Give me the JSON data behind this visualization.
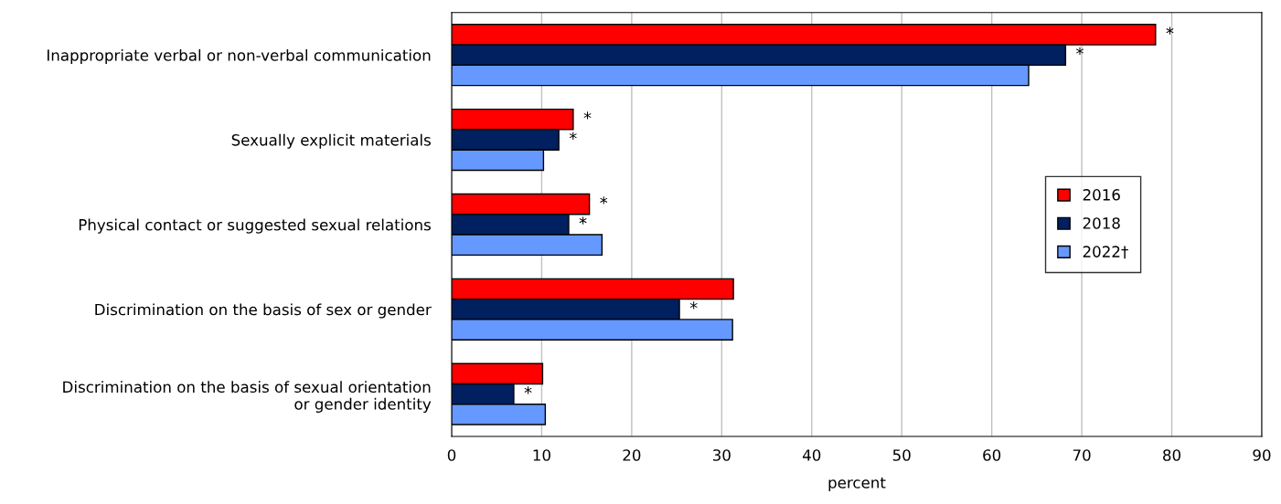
{
  "chart_data": {
    "type": "bar",
    "orientation": "horizontal",
    "xlabel": "percent",
    "categories": [
      "Inappropriate verbal or non-verbal communication",
      "Sexually explicit materials",
      "Physical contact or suggested sexual relations",
      "Discrimination on the basis of sex or gender",
      "Discrimination on the basis of sexual orientation\nor gender identity"
    ],
    "series": [
      {
        "name": "2016",
        "color": "#ff0000",
        "values": [
          78.2,
          13.5,
          15.3,
          31.3,
          10.1
        ],
        "value_labels": [
          "*",
          "*",
          "*",
          null,
          null
        ]
      },
      {
        "name": "2018",
        "color": "#002060",
        "values": [
          68.2,
          11.9,
          13.0,
          25.3,
          6.9
        ],
        "value_labels": [
          "*",
          "*",
          "*",
          "*",
          "*"
        ]
      },
      {
        "name": "2022†",
        "color": "#6699ff",
        "values": [
          64.1,
          10.2,
          16.7,
          31.2,
          10.4
        ]
      }
    ],
    "xlim": [
      0,
      90
    ],
    "xticks": [
      0,
      10,
      20,
      30,
      40,
      50,
      60,
      70,
      80,
      90
    ],
    "grid": "x",
    "legend": "right"
  }
}
